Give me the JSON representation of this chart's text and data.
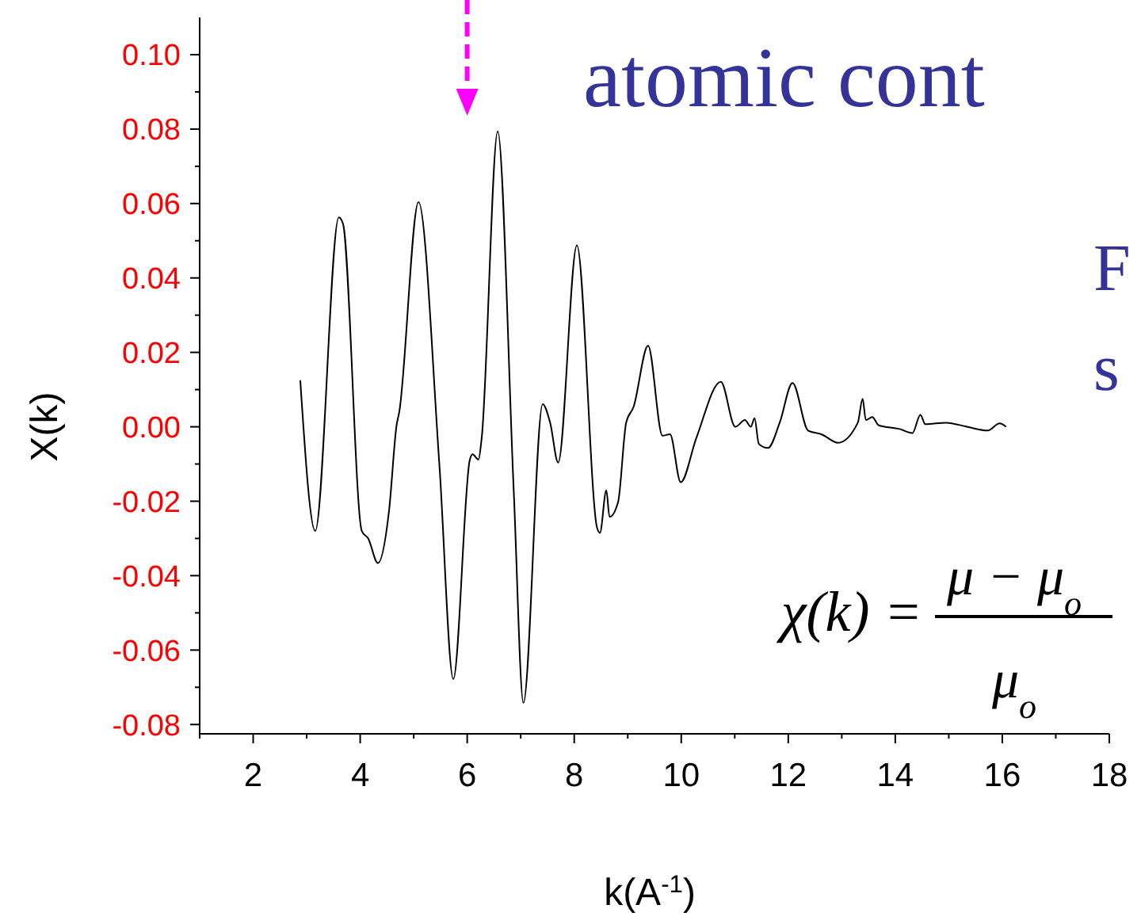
{
  "chart_data": {
    "type": "line",
    "title": "atomic cont",
    "xlabel": "k(A$^{-1}$)",
    "ylabel": "X(k)",
    "annotations": [
      "F",
      "s",
      "χ(k) =",
      "μ − μ$_{o}$",
      "μ$_{o}$"
    ],
    "xlim": [
      1,
      18
    ],
    "xticks": [
      2,
      4,
      6,
      8,
      10,
      12,
      14,
      16,
      18
    ],
    "ylim": [
      -0.0825,
      0.11
    ],
    "yticks": [
      {
        "value": -0.08,
        "label": "-0.08"
      },
      {
        "value": -0.06,
        "label": "-0.06"
      },
      {
        "value": -0.04,
        "label": "-0.04"
      },
      {
        "value": -0.02,
        "label": "-0.02"
      },
      {
        "value": 0,
        "label": "0.00"
      },
      {
        "value": 0.02,
        "label": "0.02"
      },
      {
        "value": 0.04,
        "label": "0.04"
      },
      {
        "value": 0.06,
        "label": "0.06"
      },
      {
        "value": 0.08,
        "label": "0.08"
      },
      {
        "value": 0.1,
        "label": "0.10"
      }
    ],
    "marker": "none",
    "line_style": "solid",
    "series": [
      {
        "color": "#000000",
        "x": [
          2.88,
          3.16,
          3.6,
          3.68,
          4.03,
          4.15,
          4.33,
          4.54,
          4.68,
          4.73,
          5.09,
          5.48,
          5.74,
          6.05,
          6.1,
          6.21,
          6.27,
          6.57,
          6.87,
          7.05,
          7.41,
          7.55,
          7.7,
          8.05,
          8.43,
          8.48,
          8.6,
          8.66,
          8.82,
          8.97,
          9.11,
          9.38,
          9.65,
          9.79,
          9.99,
          10.28,
          10.74,
          11.01,
          11.19,
          11.3,
          11.37,
          11.45,
          11.62,
          11.84,
          12.08,
          12.37,
          12.62,
          12.93,
          13.3,
          13.39,
          13.45,
          13.57,
          13.69,
          14.08,
          14.32,
          14.47,
          14.56,
          14.95,
          15.34,
          15.73,
          15.95,
          16.07
        ],
        "values": [
          0.0125,
          -0.028,
          0.0563,
          0.0545,
          -0.028,
          -0.03,
          -0.0366,
          -0.0224,
          0.0004,
          0.004,
          0.0604,
          -0.0102,
          -0.0678,
          -0.0088,
          -0.0074,
          -0.0088,
          -0.0031,
          0.0794,
          -0.0174,
          -0.0742,
          0.0061,
          0.0011,
          -0.0096,
          0.0488,
          -0.0273,
          -0.0285,
          -0.0171,
          -0.0242,
          -0.0202,
          0.0011,
          0.0054,
          0.0218,
          -0.0024,
          -0.002,
          -0.0149,
          -0.0031,
          0.0121,
          0,
          0.0018,
          0,
          0.0023,
          -0.0046,
          -0.0057,
          0.0011,
          0.0118,
          -0.001,
          -0.002,
          -0.0043,
          0.0011,
          0.0075,
          0.0018,
          0.0026,
          0.0004,
          -0.0006,
          -0.0017,
          0.0032,
          0.0007,
          0.0011,
          0,
          -0.001,
          0.0009,
          0
        ]
      }
    ]
  }
}
